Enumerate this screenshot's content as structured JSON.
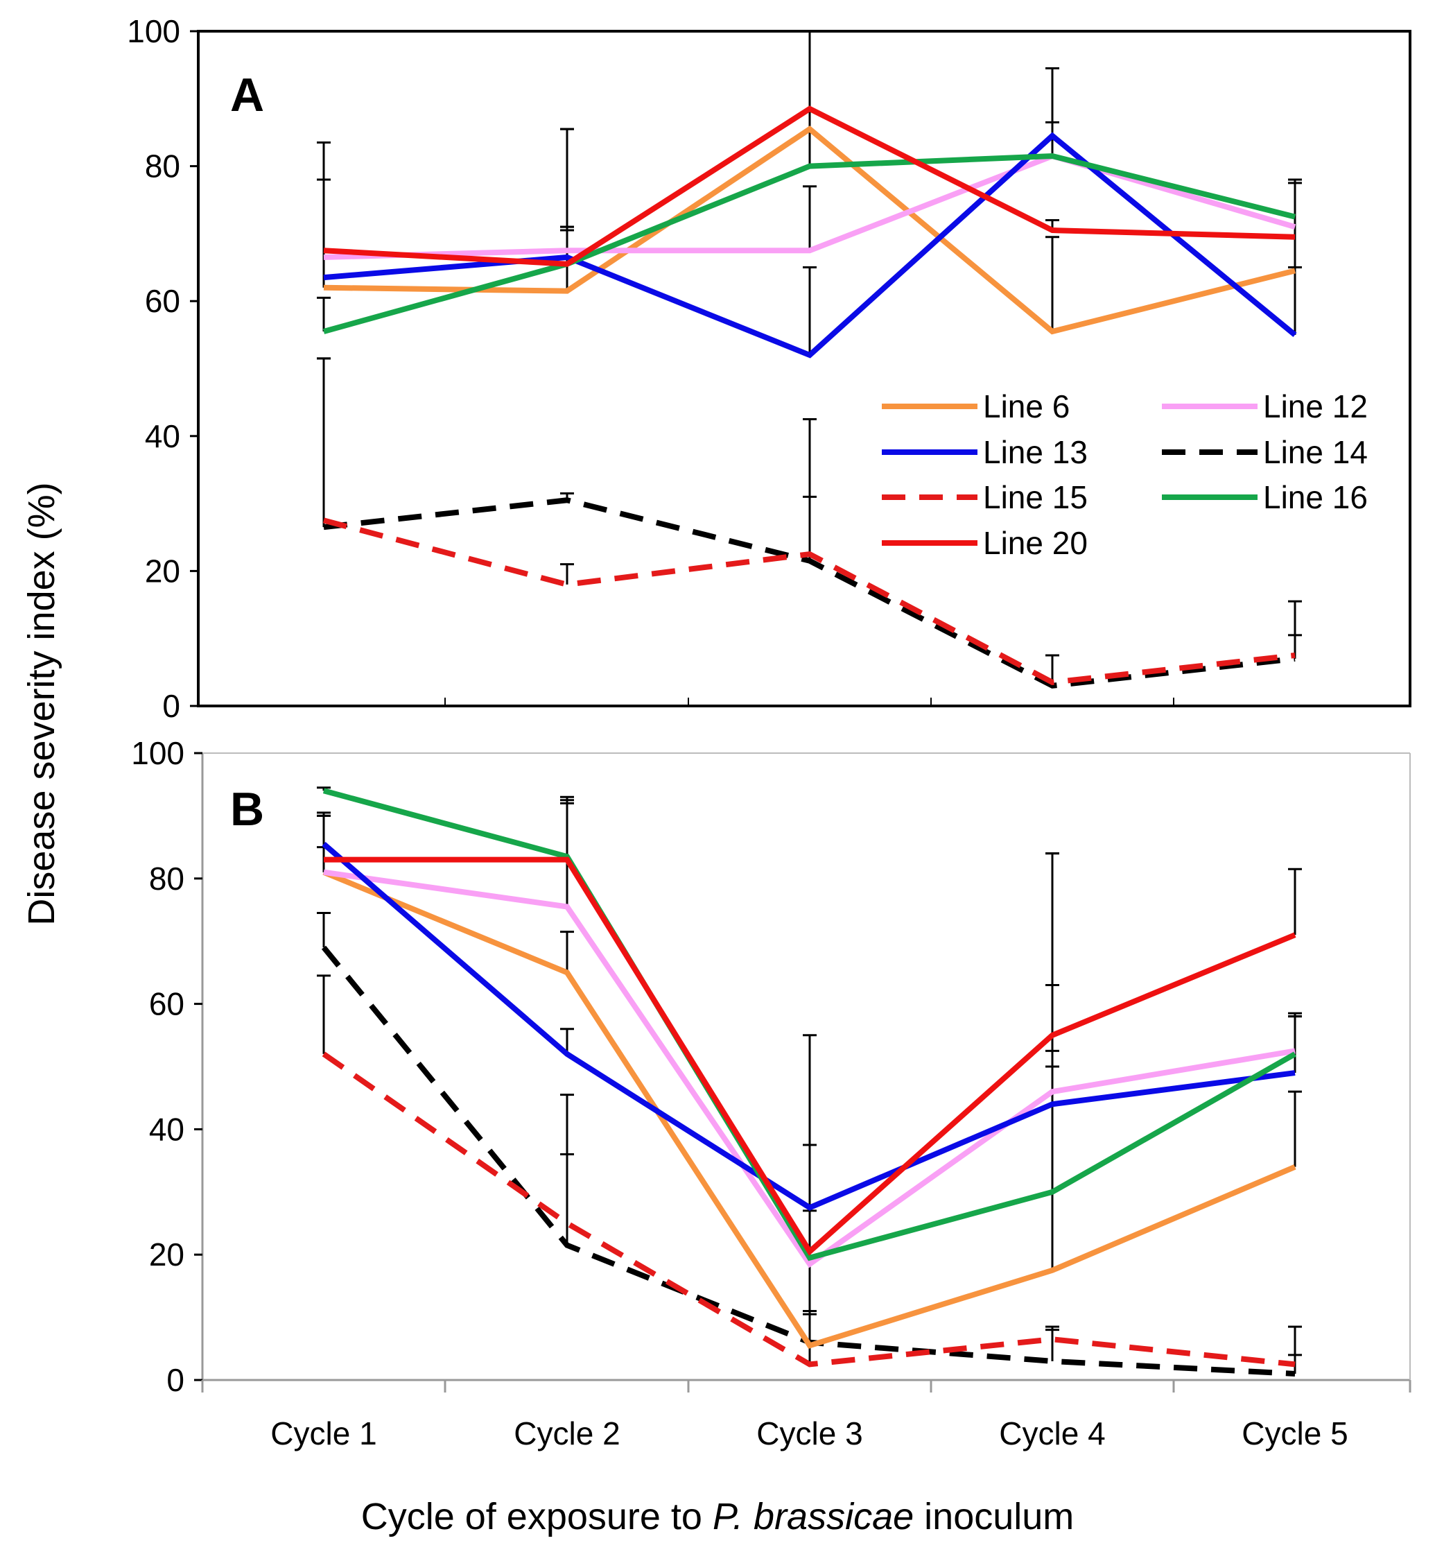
{
  "chart_data": {
    "type": "line",
    "ylabel": "Disease severity index (%)",
    "xlabel_parts": [
      "Cycle of exposure to ",
      "P. brassicae",
      " inoculum"
    ],
    "categories": [
      "Cycle 1",
      "Cycle 2",
      "Cycle 3",
      "Cycle 4",
      "Cycle 5"
    ],
    "ylim": [
      0,
      100
    ],
    "yticks": [
      0,
      20,
      40,
      60,
      80,
      100
    ],
    "legend_placement": "inside panel A, middle-right",
    "styles": {
      "Line 6": {
        "color": "#F7933E",
        "dash": false
      },
      "Line 12": {
        "color": "#F9A0F5",
        "dash": false
      },
      "Line 13": {
        "color": "#0A0AE6",
        "dash": false
      },
      "Line 14": {
        "color": "#000000",
        "dash": true
      },
      "Line 15": {
        "color": "#E41A1A",
        "dash": true
      },
      "Line 16": {
        "color": "#16A64A",
        "dash": false
      },
      "Line 20": {
        "color": "#EE1111",
        "dash": false
      }
    },
    "legend_order": [
      "Line 6",
      "Line 12",
      "Line 13",
      "Line 14",
      "Line 15",
      "Line 16",
      "Line 20"
    ],
    "panels": [
      {
        "label": "A",
        "series": [
          {
            "name": "Line 14",
            "values": [
              26.5,
              30.5,
              21.5,
              3,
              7
            ],
            "errors": [
              25,
              1,
              21,
              4.5,
              8.5
            ]
          },
          {
            "name": "Line 15",
            "values": [
              27.5,
              18,
              22.5,
              3.5,
              7.5
            ],
            "errors": [
              24,
              3,
              8.5,
              4,
              3
            ]
          },
          {
            "name": "Line 6",
            "values": [
              62,
              61.5,
              85.5,
              55.5,
              64.5
            ],
            "errors": [
              16,
              9.5,
              15,
              14,
              13.5
            ]
          },
          {
            "name": "Line 12",
            "values": [
              66.5,
              67.5,
              67.5,
              81.5,
              71
            ],
            "errors": [
              11.5,
              18,
              9.5,
              13,
              7
            ]
          },
          {
            "name": "Line 13",
            "values": [
              63.5,
              66.5,
              52,
              84.5,
              55
            ],
            "errors": [
              14.5,
              4.5,
              13,
              10,
              10
            ]
          },
          {
            "name": "Line 16",
            "values": [
              55.5,
              65.5,
              80,
              81.5,
              72.5
            ],
            "errors": [
              5,
              5,
              20,
              5,
              5.5
            ]
          },
          {
            "name": "Line 20",
            "values": [
              67.5,
              65.5,
              88.5,
              70.5,
              69.5
            ],
            "errors": [
              16,
              20,
              11.5,
              1.5,
              8
            ]
          }
        ]
      },
      {
        "label": "B",
        "series": [
          {
            "name": "Line 14",
            "values": [
              69,
              21.5,
              6,
              3,
              1
            ],
            "errors": [
              5.5,
              14.5,
              4.5,
              5.5,
              3
            ]
          },
          {
            "name": "Line 15",
            "values": [
              52,
              25,
              2.5,
              6.5,
              2.5
            ],
            "errors": [
              12.5,
              20.5,
              8.5,
              1.5,
              6
            ]
          },
          {
            "name": "Line 6",
            "values": [
              81,
              65,
              5.5,
              17.5,
              34
            ],
            "errors": [
              9,
              6.5,
              32,
              35,
              12
            ]
          },
          {
            "name": "Line 12",
            "values": [
              81,
              75.5,
              18.5,
              46,
              52.5
            ],
            "errors": [
              4,
              17,
              19,
              38,
              6
            ]
          },
          {
            "name": "Line 13",
            "values": [
              85.5,
              52,
              27.5,
              44,
              49
            ],
            "errors": [
              4.5,
              4,
              10,
              19,
              9
            ]
          },
          {
            "name": "Line 16",
            "values": [
              94,
              83.5,
              19.5,
              30,
              52
            ],
            "errors": [
              0.5,
              8.5,
              7.5,
              20,
              6
            ]
          },
          {
            "name": "Line 20",
            "values": [
              83,
              83,
              20.5,
              55,
              71
            ],
            "errors": [
              7.5,
              10,
              34.5,
              29,
              10.5
            ]
          }
        ]
      }
    ]
  }
}
